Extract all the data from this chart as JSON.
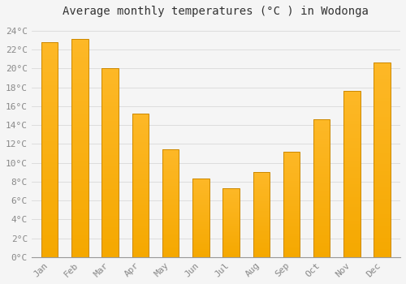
{
  "months": [
    "Jan",
    "Feb",
    "Mar",
    "Apr",
    "May",
    "Jun",
    "Jul",
    "Aug",
    "Sep",
    "Oct",
    "Nov",
    "Dec"
  ],
  "values": [
    22.8,
    23.1,
    20.0,
    15.2,
    11.4,
    8.3,
    7.3,
    9.0,
    11.2,
    14.6,
    17.6,
    20.6
  ],
  "bar_color_top": "#FDB827",
  "bar_color_bottom": "#F5A800",
  "bar_edge_color": "#CC8800",
  "background_color": "#f5f5f5",
  "plot_bg_color": "#f5f5f5",
  "grid_color": "#dddddd",
  "title": "Average monthly temperatures (°C ) in Wodonga",
  "title_fontsize": 10,
  "tick_label_color": "#888888",
  "axis_label_fontsize": 8,
  "ylim": [
    0,
    25
  ],
  "yticks": [
    0,
    2,
    4,
    6,
    8,
    10,
    12,
    14,
    16,
    18,
    20,
    22,
    24
  ],
  "ytick_labels": [
    "0°C",
    "2°C",
    "4°C",
    "6°C",
    "8°C",
    "10°C",
    "12°C",
    "14°C",
    "16°C",
    "18°C",
    "20°C",
    "22°C",
    "24°C"
  ],
  "bar_width": 0.55
}
